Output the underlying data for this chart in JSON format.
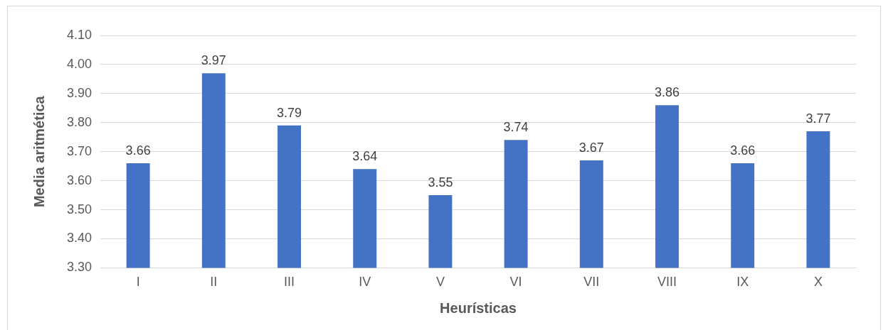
{
  "chart_data": {
    "type": "bar",
    "xlabel": "Heurísticas",
    "ylabel": "Media aritmética",
    "categories": [
      "I",
      "II",
      "III",
      "IV",
      "V",
      "VI",
      "VII",
      "VIII",
      "IX",
      "X"
    ],
    "values": [
      3.66,
      3.97,
      3.79,
      3.64,
      3.55,
      3.74,
      3.67,
      3.86,
      3.66,
      3.77
    ],
    "color": "#4472c4",
    "data_labels": true,
    "grid": "y",
    "legend": false,
    "ylim": [
      3.3,
      4.1
    ],
    "yticks": [
      {
        "value": 3.3,
        "label": "3.30"
      },
      {
        "value": 3.4,
        "label": "3.40"
      },
      {
        "value": 3.5,
        "label": "3.50"
      },
      {
        "value": 3.6,
        "label": "3.60"
      },
      {
        "value": 3.7,
        "label": "3.70"
      },
      {
        "value": 3.8,
        "label": "3.80"
      },
      {
        "value": 3.9,
        "label": "3.90"
      },
      {
        "value": 4.0,
        "label": "4.00"
      },
      {
        "value": 4.1,
        "label": "4.10"
      }
    ]
  }
}
